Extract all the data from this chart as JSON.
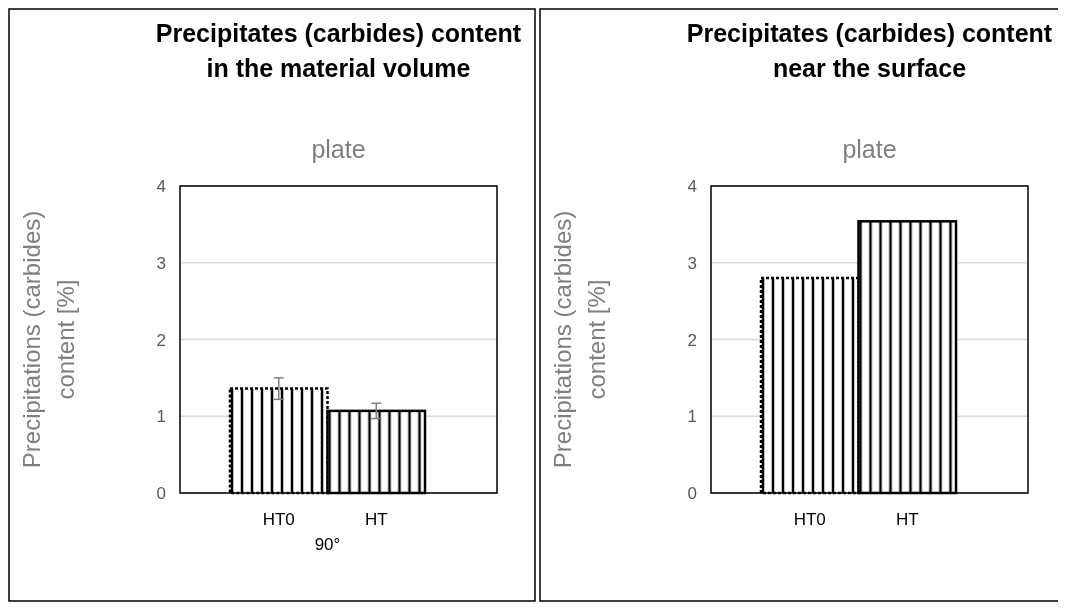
{
  "chart_data": [
    {
      "type": "bar",
      "title": "Precipitates (carbides) content in the material volume",
      "subtitle": "plate",
      "ylabel": "Precipitations (carbides) content  [%]",
      "xlabel": "90°",
      "categories": [
        "HT0",
        "HT"
      ],
      "values": [
        1.36,
        1.07
      ],
      "errors": [
        0.14,
        0.1
      ],
      "colors": [
        "#000000",
        "#000000"
      ],
      "ylim": [
        0,
        4
      ],
      "yticks": [
        0,
        1,
        2,
        3,
        4
      ],
      "grid": "y"
    },
    {
      "type": "bar",
      "title": "Precipitates (carbides) content near the surface",
      "subtitle": "plate",
      "ylabel": "Precipitations (carbides) content  [%]",
      "categories": [
        "HT0",
        "HT"
      ],
      "values": [
        2.8,
        3.54
      ],
      "colors": [
        "#000000",
        "#000000"
      ],
      "ylim": [
        0,
        4
      ],
      "yticks": [
        0,
        1,
        2,
        3,
        4
      ],
      "grid": "y"
    }
  ]
}
